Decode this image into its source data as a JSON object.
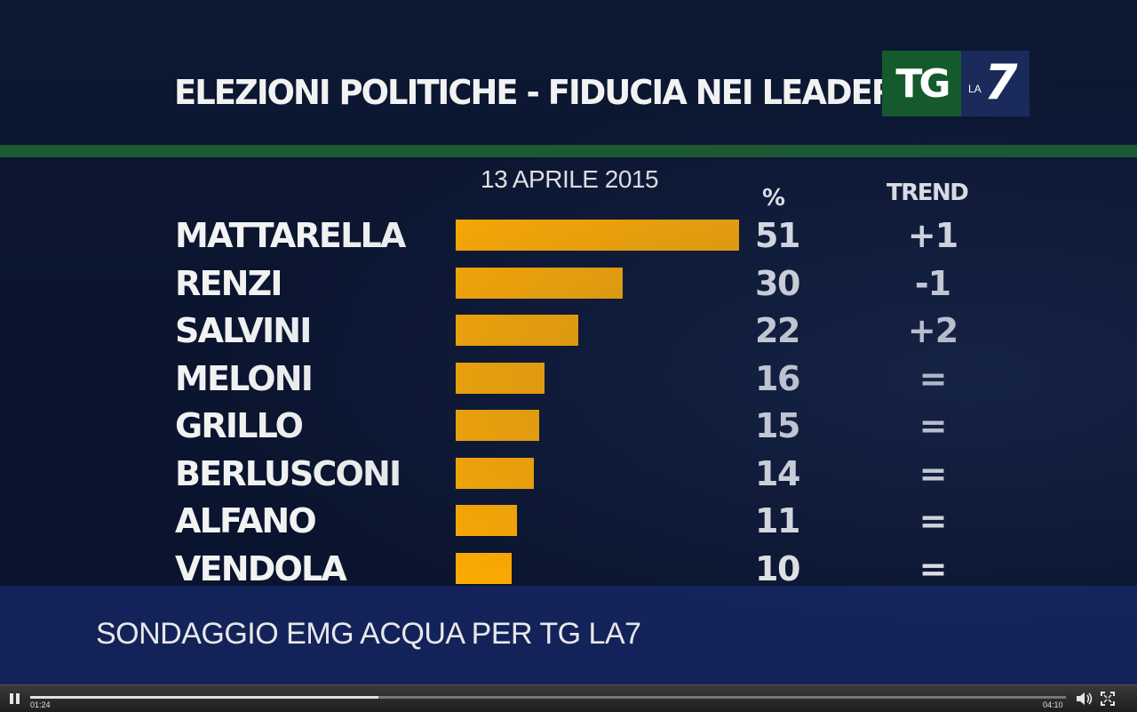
{
  "header": {
    "title": "ELEZIONI POLITICHE - FIDUCIA NEI LEADER",
    "logo_tg": "TG",
    "logo_la": "LA",
    "logo_7": "7"
  },
  "table": {
    "date": "13 APRILE 2015",
    "pct_header": "%",
    "trend_header": "TREND",
    "rows": [
      {
        "name": "MATTARELLA",
        "pct": "51",
        "trend": "+1"
      },
      {
        "name": "RENZI",
        "pct": "30",
        "trend": "-1"
      },
      {
        "name": "SALVINI",
        "pct": "22",
        "trend": "+2"
      },
      {
        "name": "MELONI",
        "pct": "16",
        "trend": "="
      },
      {
        "name": "GRILLO",
        "pct": "15",
        "trend": "="
      },
      {
        "name": "BERLUSCONI",
        "pct": "14",
        "trend": "="
      },
      {
        "name": "ALFANO",
        "pct": "11",
        "trend": "="
      },
      {
        "name": "VENDOLA",
        "pct": "10",
        "trend": "="
      }
    ]
  },
  "chart_data": {
    "type": "bar",
    "categories": [
      "MATTARELLA",
      "RENZI",
      "SALVINI",
      "MELONI",
      "GRILLO",
      "BERLUSCONI",
      "ALFANO",
      "VENDOLA"
    ],
    "values": [
      51,
      30,
      22,
      16,
      15,
      14,
      11,
      10
    ],
    "title": "ELEZIONI POLITICHE - FIDUCIA NEI LEADER",
    "subtitle": "13 APRILE 2015",
    "xlabel": "%",
    "ylabel": "",
    "orientation": "horizontal",
    "bar_color": "#ffab00"
  },
  "footer": {
    "source": "SONDAGGIO EMG ACQUA PER TG LA7"
  },
  "player": {
    "elapsed": "01:24",
    "total": "04:10",
    "progress": 0.336,
    "pause_icon": "pause-icon",
    "volume_icon": "volume-icon",
    "fullscreen_icon": "fullscreen-icon"
  },
  "colors": {
    "background": "#0b1630",
    "accent_green": "#1c5a2f",
    "bar": "#ffab00",
    "source_band": "#13235a"
  }
}
